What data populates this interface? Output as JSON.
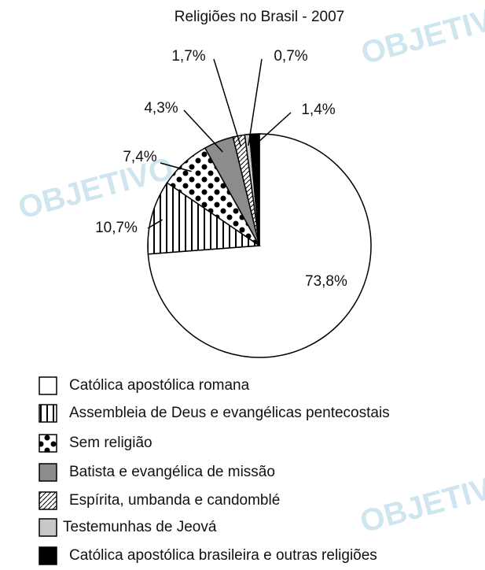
{
  "chart_data": {
    "type": "pie",
    "title": "Religiões no Brasil - 2007",
    "watermark": "OBJETIVO",
    "categories": [
      "Católica apostólica romana",
      "Assembleia de Deus e evangélicas pentecostais",
      "Sem religião",
      "Batista e evangélica de missão",
      "Espírita, umbanda e candomblé",
      "Testemunhas de Jeová",
      "Católica apostólica brasileira e outras religiões"
    ],
    "values": [
      73.8,
      10.7,
      7.4,
      4.3,
      1.7,
      0.7,
      1.4
    ],
    "value_labels": [
      "73,8%",
      "10,7%",
      "7,4%",
      "4,3%",
      "1,7%",
      "0,7%",
      "1,4%"
    ],
    "colors": [
      "#ffffff",
      "#ffffff",
      "#ffffff",
      "#8c8c8c",
      "#ffffff",
      "#c8c8c8",
      "#000000"
    ],
    "patterns": [
      "none",
      "vertical-stripes",
      "dots",
      "none",
      "diagonal-hatch",
      "none",
      "none"
    ],
    "legend": "bottom-left"
  }
}
